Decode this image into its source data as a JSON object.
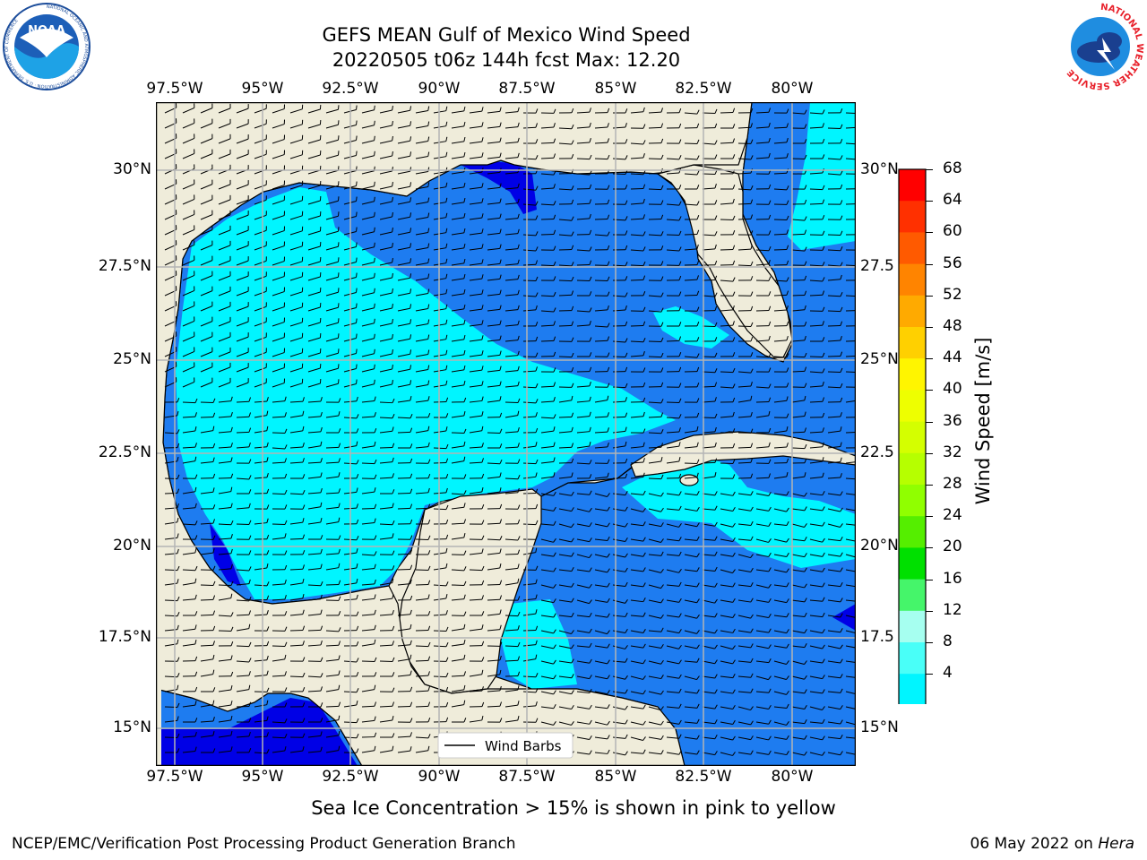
{
  "header": {
    "title_line1": "GEFS MEAN Gulf of Mexico Wind Speed",
    "title_line2": "20220505 t06z 144h fcst   Max: 12.20"
  },
  "logos": {
    "left_text": "NOAA",
    "left_ring_text": "NATIONAL OCEANIC AND ATMOSPHERIC ADMINISTRATION · U.S. DEPARTMENT OF COMMERCE",
    "right_ring_text": "NATIONAL WEATHER SERVICE"
  },
  "map": {
    "lon_ticks": [
      "97.5°W",
      "95°W",
      "92.5°W",
      "90°W",
      "87.5°W",
      "85°W",
      "82.5°W",
      "80°W"
    ],
    "lat_ticks": [
      "30°N",
      "27.5°N",
      "25°N",
      "22.5°N",
      "20°N",
      "17.5°N",
      "15°N"
    ],
    "lat_ticks_right": [
      "30°N",
      "27.5",
      "25°N",
      "22.5",
      "20°N",
      "17.5",
      "15°N"
    ],
    "legend_label": "Wind Barbs",
    "colors": {
      "land": "#efecda",
      "ocean_4_8": "#1e7cf0",
      "ocean_8_12": "#00f5ff",
      "ocean_lt4": "#0000e6",
      "grid": "#b4b4b4"
    }
  },
  "colorbar": {
    "label": "Wind Speed [m/s]",
    "ticks": [
      "68",
      "64",
      "60",
      "56",
      "52",
      "48",
      "44",
      "40",
      "36",
      "32",
      "28",
      "24",
      "20",
      "16",
      "12",
      "8",
      "4"
    ],
    "colors": [
      "#ff0000",
      "#ff3000",
      "#ff5a00",
      "#ff8400",
      "#ffaa00",
      "#ffd000",
      "#fff500",
      "#eeff00",
      "#d4ff00",
      "#b6ff00",
      "#90ff00",
      "#55ee00",
      "#00e000",
      "#45f56a",
      "#a6fff0",
      "#49fff8",
      "#00f5ff",
      "#1e7cf0",
      "#0000e6"
    ]
  },
  "annotation": "Sea Ice Concentration > 15% is shown in pink to yellow",
  "footer": {
    "left": "NCEP/EMC/Verification Post Processing Product Generation Branch",
    "date": "06 May 2022 on ",
    "machine": "Hera"
  }
}
